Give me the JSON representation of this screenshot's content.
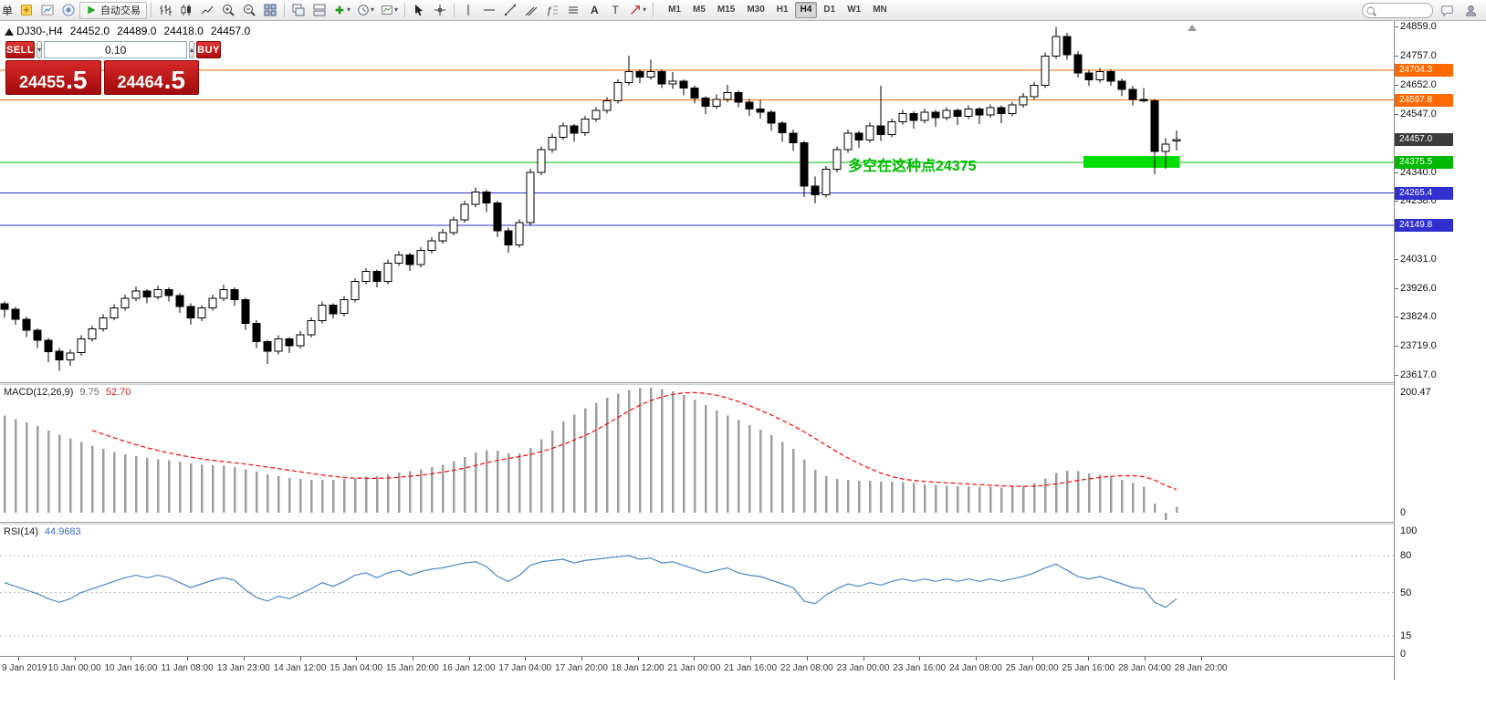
{
  "toolbar": {
    "menu_fragment": "单",
    "autotrading_label": "自动交易",
    "timeframes": [
      "M1",
      "M5",
      "M15",
      "M30",
      "H1",
      "H4",
      "D1",
      "W1",
      "MN"
    ],
    "active_timeframe": "H4",
    "search_placeholder": ""
  },
  "chart_header": {
    "symbol_period": "DJ30-,H4",
    "open": "24452.0",
    "high": "24489.0",
    "low": "24418.0",
    "close": "24457.0"
  },
  "trade_panel": {
    "sell_label": "SELL",
    "buy_label": "BUY",
    "lot_value": "0.10",
    "sell_price_main": "24455",
    "sell_price_frac": ".5",
    "buy_price_main": "24464",
    "buy_price_frac": ".5"
  },
  "macd_panel": {
    "title": "MACD(12,26,9)",
    "value_main": "9.75",
    "value_signal": "52.70",
    "scale_top": "200.47",
    "scale_zero": "0"
  },
  "rsi_panel": {
    "title": "RSI(14)",
    "value": "44.9683",
    "scale_labels": [
      100,
      80,
      50,
      15,
      0
    ]
  },
  "price_scale": {
    "ticks": [
      24859,
      24757,
      24652,
      24547,
      24340,
      24238,
      24031,
      23926,
      23824,
      23719,
      23617
    ],
    "badges": [
      {
        "label": "24704.3",
        "price": 24704.3,
        "bg": "#ff6a00",
        "fg": "#ffffff"
      },
      {
        "label": "24597.8",
        "price": 24597.8,
        "bg": "#ff6a00",
        "fg": "#ffffff"
      },
      {
        "label": "24457.0",
        "price": 24457.0,
        "bg": "#3c3c3c",
        "fg": "#ffffff"
      },
      {
        "label": "24375.5",
        "price": 24375.5,
        "bg": "#00b800",
        "fg": "#ffffff"
      },
      {
        "label": "24265.4",
        "price": 24265.4,
        "bg": "#3030cf",
        "fg": "#ffffff"
      },
      {
        "label": "24149.8",
        "price": 24149.8,
        "bg": "#3030cf",
        "fg": "#ffffff"
      }
    ]
  },
  "time_axis": {
    "labels": [
      "9 Jan 2019",
      "10 Jan 00:00",
      "10 Jan 16:00",
      "11 Jan 08:00",
      "13 Jan 23:00",
      "14 Jan 12:00",
      "15 Jan 04:00",
      "15 Jan 20:00",
      "16 Jan 12:00",
      "17 Jan 04:00",
      "17 Jan 20:00",
      "18 Jan 12:00",
      "21 Jan 00:00",
      "21 Jan 16:00",
      "22 Jan 08:00",
      "23 Jan 00:00",
      "23 Jan 16:00",
      "24 Jan 08:00",
      "25 Jan 00:00",
      "25 Jan 16:00",
      "28 Jan 04:00",
      "28 Jan 20:00"
    ]
  },
  "chart_data": [
    {
      "type": "candlestick",
      "symbol": "DJ30-",
      "timeframe": "H4",
      "ylim": [
        23590,
        24880
      ],
      "levels": [
        {
          "price": 24704.3,
          "color": "#ff6a00"
        },
        {
          "price": 24597.8,
          "color": "#ff6a00"
        },
        {
          "price": 24375.5,
          "color": "#00c000"
        },
        {
          "price": 24265.4,
          "color": "#3030cf"
        },
        {
          "price": 24149.8,
          "color": "#3030cf"
        }
      ],
      "highlight_rect": {
        "start_index": 98.5,
        "end_index": 107.3,
        "price_top": 24398,
        "price_bottom": 24356,
        "color": "#00dd00"
      },
      "annotation": {
        "text": "多空在这种点24375",
        "index": 77,
        "price": 24345,
        "color": "#00bb00"
      },
      "candles": [
        [
          23870,
          23878,
          23820,
          23850
        ],
        [
          23850,
          23858,
          23795,
          23815
        ],
        [
          23815,
          23825,
          23752,
          23775
        ],
        [
          23775,
          23782,
          23712,
          23740
        ],
        [
          23740,
          23748,
          23662,
          23700
        ],
        [
          23700,
          23712,
          23631,
          23670
        ],
        [
          23670,
          23708,
          23648,
          23695
        ],
        [
          23695,
          23758,
          23685,
          23745
        ],
        [
          23745,
          23792,
          23735,
          23780
        ],
        [
          23780,
          23832,
          23770,
          23820
        ],
        [
          23820,
          23868,
          23812,
          23855
        ],
        [
          23855,
          23902,
          23845,
          23890
        ],
        [
          23890,
          23932,
          23880,
          23915
        ],
        [
          23915,
          23922,
          23872,
          23895
        ],
        [
          23895,
          23935,
          23885,
          23920
        ],
        [
          23920,
          23928,
          23878,
          23900
        ],
        [
          23900,
          23908,
          23838,
          23860
        ],
        [
          23860,
          23872,
          23795,
          23820
        ],
        [
          23820,
          23865,
          23808,
          23855
        ],
        [
          23855,
          23902,
          23845,
          23890
        ],
        [
          23890,
          23938,
          23880,
          23920
        ],
        [
          23920,
          23928,
          23862,
          23885
        ],
        [
          23885,
          23892,
          23778,
          23800
        ],
        [
          23800,
          23812,
          23712,
          23735
        ],
        [
          23735,
          23742,
          23655,
          23700
        ],
        [
          23700,
          23758,
          23690,
          23745
        ],
        [
          23745,
          23752,
          23695,
          23720
        ],
        [
          23720,
          23772,
          23710,
          23760
        ],
        [
          23760,
          23822,
          23750,
          23810
        ],
        [
          23810,
          23878,
          23800,
          23865
        ],
        [
          23865,
          23872,
          23818,
          23835
        ],
        [
          23835,
          23898,
          23825,
          23885
        ],
        [
          23885,
          23962,
          23875,
          23950
        ],
        [
          23950,
          23998,
          23940,
          23985
        ],
        [
          23985,
          23992,
          23928,
          23950
        ],
        [
          23950,
          24028,
          23940,
          24015
        ],
        [
          24015,
          24058,
          24005,
          24045
        ],
        [
          24045,
          24052,
          23988,
          24010
        ],
        [
          24010,
          24072,
          24000,
          24060
        ],
        [
          24060,
          24108,
          24050,
          24095
        ],
        [
          24095,
          24138,
          24085,
          24125
        ],
        [
          24125,
          24182,
          24115,
          24170
        ],
        [
          24170,
          24238,
          24160,
          24225
        ],
        [
          24225,
          24285,
          24215,
          24270
        ],
        [
          24270,
          24278,
          24198,
          24230
        ],
        [
          24230,
          24238,
          24108,
          24130
        ],
        [
          24130,
          24142,
          24052,
          24080
        ],
        [
          24080,
          24172,
          24070,
          24160
        ],
        [
          24160,
          24352,
          24150,
          24340
        ],
        [
          24340,
          24432,
          24330,
          24420
        ],
        [
          24420,
          24478,
          24410,
          24465
        ],
        [
          24465,
          24518,
          24455,
          24505
        ],
        [
          24505,
          24512,
          24448,
          24480
        ],
        [
          24480,
          24542,
          24470,
          24530
        ],
        [
          24530,
          24572,
          24520,
          24560
        ],
        [
          24560,
          24608,
          24550,
          24595
        ],
        [
          24595,
          24672,
          24585,
          24660
        ],
        [
          24660,
          24757,
          24650,
          24700
        ],
        [
          24700,
          24708,
          24658,
          24680
        ],
        [
          24680,
          24742,
          24670,
          24700
        ],
        [
          24700,
          24708,
          24640,
          24655
        ],
        [
          24655,
          24698,
          24638,
          24665
        ],
        [
          24665,
          24672,
          24615,
          24640
        ],
        [
          24640,
          24648,
          24585,
          24605
        ],
        [
          24605,
          24612,
          24548,
          24575
        ],
        [
          24575,
          24618,
          24565,
          24600
        ],
        [
          24600,
          24652,
          24590,
          24625
        ],
        [
          24625,
          24632,
          24572,
          24590
        ],
        [
          24590,
          24602,
          24542,
          24565
        ],
        [
          24565,
          24598,
          24532,
          24555
        ],
        [
          24555,
          24562,
          24488,
          24515
        ],
        [
          24515,
          24522,
          24448,
          24480
        ],
        [
          24480,
          24492,
          24415,
          24445
        ],
        [
          24445,
          24452,
          24252,
          24290
        ],
        [
          24290,
          24325,
          24228,
          24260
        ],
        [
          24260,
          24362,
          24250,
          24350
        ],
        [
          24350,
          24432,
          24340,
          24420
        ],
        [
          24420,
          24492,
          24410,
          24480
        ],
        [
          24480,
          24488,
          24428,
          24455
        ],
        [
          24455,
          24518,
          24445,
          24505
        ],
        [
          24505,
          24648,
          24452,
          24475
        ],
        [
          24475,
          24532,
          24465,
          24520
        ],
        [
          24520,
          24562,
          24510,
          24550
        ],
        [
          24550,
          24558,
          24495,
          24525
        ],
        [
          24525,
          24568,
          24515,
          24555
        ],
        [
          24555,
          24562,
          24502,
          24535
        ],
        [
          24535,
          24572,
          24525,
          24560
        ],
        [
          24560,
          24568,
          24508,
          24540
        ],
        [
          24540,
          24578,
          24530,
          24565
        ],
        [
          24565,
          24572,
          24512,
          24545
        ],
        [
          24545,
          24582,
          24535,
          24570
        ],
        [
          24570,
          24578,
          24515,
          24550
        ],
        [
          24550,
          24592,
          24540,
          24580
        ],
        [
          24580,
          24622,
          24570,
          24610
        ],
        [
          24610,
          24662,
          24600,
          24650
        ],
        [
          24650,
          24768,
          24640,
          24755
        ],
        [
          24755,
          24859,
          24745,
          24825
        ],
        [
          24825,
          24838,
          24742,
          24760
        ],
        [
          24760,
          24772,
          24678,
          24695
        ],
        [
          24695,
          24705,
          24648,
          24670
        ],
        [
          24670,
          24712,
          24660,
          24700
        ],
        [
          24700,
          24708,
          24648,
          24665
        ],
        [
          24665,
          24675,
          24612,
          24635
        ],
        [
          24635,
          24648,
          24578,
          24600
        ],
        [
          24600,
          24640,
          24588,
          24595
        ],
        [
          24595,
          24602,
          24332,
          24415
        ],
        [
          24415,
          24462,
          24352,
          24440
        ],
        [
          24452,
          24489,
          24418,
          24457
        ]
      ]
    },
    {
      "type": "bar",
      "name": "MACD",
      "params": "12,26,9",
      "ymax": 200.47,
      "bar_color": "#9e9e9e",
      "signal_color": "#ff0000",
      "signal_period": 9,
      "current_main": 9.75,
      "current_signal": 52.7,
      "values": [
        162,
        156,
        150,
        144,
        137,
        130,
        124,
        118,
        112,
        106,
        101,
        97,
        94,
        91,
        89,
        87,
        85,
        82,
        80,
        79,
        78,
        76,
        72,
        68,
        64,
        61,
        58,
        56,
        55,
        55,
        55,
        56,
        58,
        60,
        61,
        64,
        67,
        69,
        72,
        76,
        80,
        86,
        93,
        100,
        104,
        103,
        99,
        99,
        108,
        122,
        137,
        152,
        163,
        174,
        183,
        191,
        198,
        204,
        207,
        208,
        206,
        202,
        196,
        188,
        179,
        170,
        162,
        154,
        146,
        138,
        129,
        118,
        106,
        88,
        71,
        61,
        56,
        55,
        53,
        53,
        52,
        52,
        51,
        49,
        47,
        46,
        45,
        44,
        44,
        43,
        43,
        42,
        43,
        45,
        49,
        57,
        66,
        70,
        69,
        65,
        63,
        60,
        55,
        49,
        43,
        15,
        -12,
        9.75
      ]
    },
    {
      "type": "line",
      "name": "RSI",
      "params": "14",
      "ylim": [
        0,
        100
      ],
      "color": "#4a86c8",
      "levels": [
        80,
        50,
        15
      ],
      "current": 44.9683,
      "values": [
        58,
        55,
        52,
        49,
        45,
        42,
        45,
        50,
        53,
        56,
        59,
        62,
        64,
        62,
        64,
        62,
        58,
        54,
        57,
        60,
        62,
        60,
        52,
        46,
        43,
        47,
        45,
        49,
        53,
        58,
        55,
        59,
        64,
        66,
        62,
        66,
        68,
        64,
        67,
        69,
        70,
        72,
        74,
        75,
        71,
        63,
        59,
        64,
        72,
        75,
        76,
        77,
        74,
        76,
        77,
        78,
        79,
        80,
        77,
        78,
        74,
        75,
        72,
        69,
        66,
        68,
        70,
        66,
        64,
        63,
        60,
        57,
        54,
        43,
        41,
        48,
        53,
        57,
        55,
        58,
        56,
        59,
        61,
        59,
        61,
        59,
        61,
        59,
        61,
        59,
        61,
        59,
        61,
        63,
        66,
        70,
        73,
        68,
        63,
        61,
        63,
        60,
        57,
        54,
        53,
        42,
        38,
        44.97
      ]
    }
  ]
}
